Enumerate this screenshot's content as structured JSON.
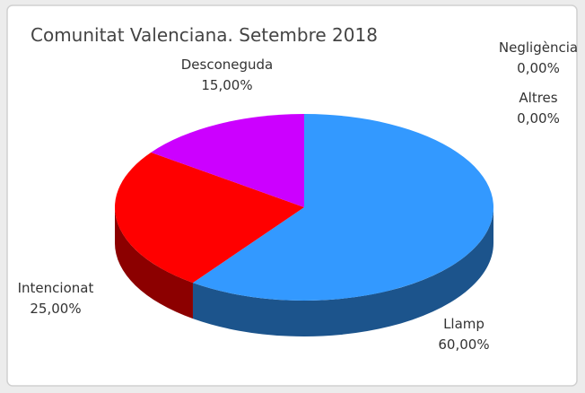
{
  "chart_data": {
    "type": "pie",
    "title": "Comunitat Valenciana. Setembre 2018",
    "categories": [
      "Llamp",
      "Intencionat",
      "Desconeguda",
      "Negligència",
      "Altres"
    ],
    "values": [
      60,
      25,
      15,
      0,
      0
    ],
    "value_labels": [
      "60,00%",
      "25,00%",
      "15,00%",
      "0,00%",
      "0,00%"
    ],
    "colors": [
      "#3399ff",
      "#ff0000",
      "#cc00ff",
      null,
      null
    ],
    "three_d": true
  }
}
